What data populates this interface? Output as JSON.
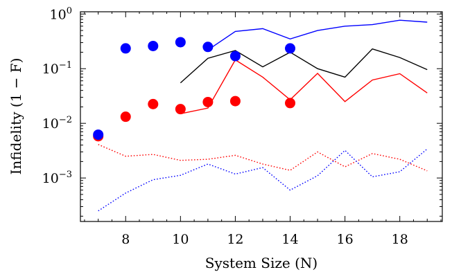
{
  "chart_data": {
    "type": "line",
    "xlabel": "System Size (N)",
    "ylabel": "Infidelity (1 − F)",
    "xlim": [
      6.35,
      19.55
    ],
    "ylim": [
      0.00016,
      1.1
    ],
    "yscale": "log",
    "grid": false,
    "x_ticks": [
      {
        "value": 8,
        "label": "8"
      },
      {
        "value": 10,
        "label": "10"
      },
      {
        "value": 12,
        "label": "12"
      },
      {
        "value": 14,
        "label": "14"
      },
      {
        "value": 16,
        "label": "16"
      },
      {
        "value": 18,
        "label": "18"
      }
    ],
    "y_ticks": [
      {
        "value": 0.001,
        "base": "10",
        "exp": "−3"
      },
      {
        "value": 0.01,
        "base": "10",
        "exp": "−2"
      },
      {
        "value": 0.1,
        "base": "10",
        "exp": "−1"
      },
      {
        "value": 1,
        "base": "10",
        "exp": "0"
      }
    ],
    "series": [
      {
        "style": "solid",
        "color": "#0000ff",
        "x": [
          11,
          12,
          13,
          14,
          15,
          16,
          17,
          18,
          19
        ],
        "y": [
          0.22,
          0.48,
          0.54,
          0.35,
          0.5,
          0.6,
          0.64,
          0.77,
          0.71
        ]
      },
      {
        "style": "solid",
        "color": "#000000",
        "x": [
          10,
          11,
          12,
          13,
          14,
          15,
          16,
          17,
          18,
          19
        ],
        "y": [
          0.055,
          0.155,
          0.215,
          0.108,
          0.2,
          0.1,
          0.07,
          0.23,
          0.16,
          0.096
        ]
      },
      {
        "style": "solid",
        "color": "#ff0000",
        "x": [
          10,
          11,
          12,
          13,
          14,
          15,
          16,
          17,
          18,
          19
        ],
        "y": [
          0.015,
          0.019,
          0.145,
          0.07,
          0.027,
          0.082,
          0.025,
          0.062,
          0.081,
          0.036
        ]
      },
      {
        "style": "dotted",
        "color": "#ff0000",
        "x": [
          7,
          8,
          9,
          10,
          11,
          12,
          13,
          14,
          15,
          16,
          17,
          18,
          19
        ],
        "y": [
          0.0041,
          0.0025,
          0.0027,
          0.0021,
          0.0022,
          0.0026,
          0.0018,
          0.00138,
          0.003,
          0.0016,
          0.0028,
          0.0022,
          0.00135
        ]
      },
      {
        "style": "dotted",
        "color": "#0000ff",
        "x": [
          7,
          8,
          9,
          10,
          11,
          12,
          13,
          14,
          15,
          16,
          17,
          18,
          19
        ],
        "y": [
          0.00025,
          0.00053,
          0.00093,
          0.00112,
          0.0018,
          0.00118,
          0.00155,
          0.0006,
          0.0011,
          0.0032,
          0.00105,
          0.0013,
          0.0034
        ]
      },
      {
        "style": "markers",
        "color": "#ff0000",
        "x": [
          7,
          8,
          9,
          10,
          11,
          12,
          14
        ],
        "y": [
          0.0058,
          0.0132,
          0.0225,
          0.0182,
          0.0245,
          0.0255,
          0.0235
        ]
      },
      {
        "style": "markers",
        "color": "#0000ff",
        "x": [
          7,
          8,
          9,
          10,
          11,
          12,
          14
        ],
        "y": [
          0.0062,
          0.235,
          0.26,
          0.305,
          0.25,
          0.17,
          0.235
        ]
      }
    ]
  }
}
